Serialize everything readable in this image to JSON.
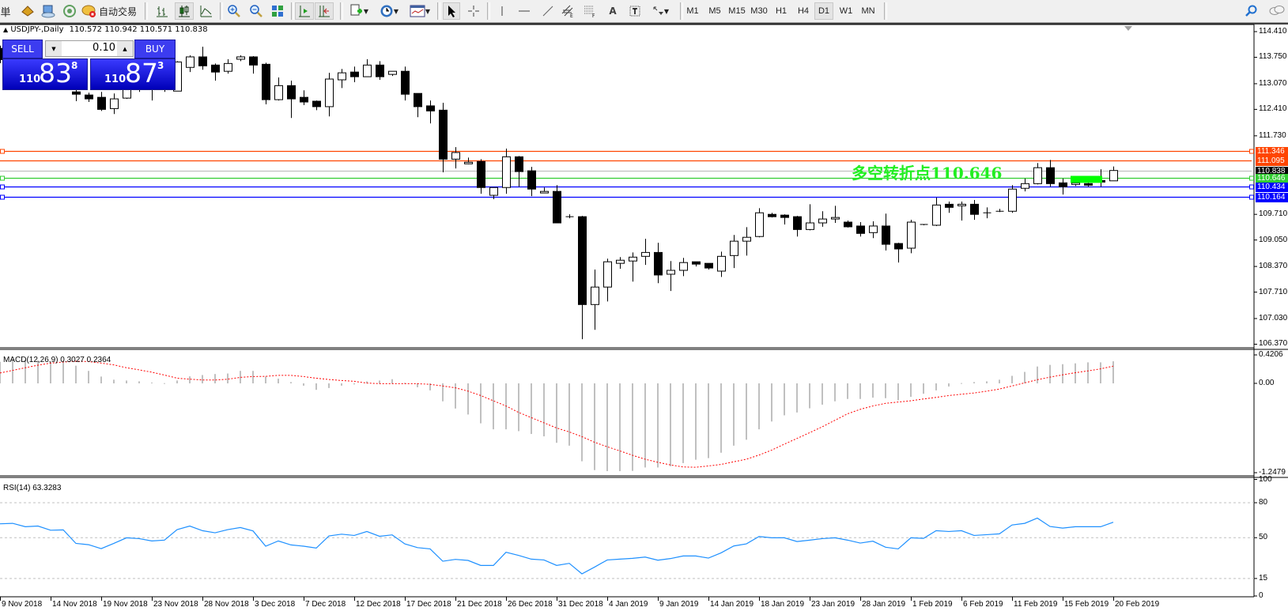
{
  "toolbar": {
    "items": [
      {
        "name": "menu-char",
        "label": "単"
      },
      {
        "name": "book-icon",
        "label": ""
      },
      {
        "name": "terminal-icon",
        "label": ""
      },
      {
        "name": "signal-icon",
        "label": ""
      },
      {
        "name": "autotrading-icon",
        "label": "自动交易"
      }
    ],
    "autotrading_label": "自动交易",
    "menu_char": "単",
    "timeframes": [
      "M1",
      "M5",
      "M15",
      "M30",
      "H1",
      "H4",
      "D1",
      "W1",
      "MN"
    ],
    "active_timeframe": "D1"
  },
  "chart": {
    "title": "USDJPY-,Daily",
    "ohlc": "110.572 110.942 110.571 110.838",
    "price_labels": [
      "114.410",
      "113.750",
      "113.070",
      "112.410",
      "111.730",
      "109.710",
      "109.050",
      "108.370",
      "107.710",
      "107.030",
      "106.370"
    ],
    "annotation": "多空转折点110.646",
    "levels": [
      {
        "value": "111.346",
        "color": "#ff4500",
        "anchor": true
      },
      {
        "value": "111.095",
        "color": "#ff4500",
        "anchor": false
      },
      {
        "value": "110.838",
        "color": "#000000",
        "line": "#c0c0c0",
        "anchor": false
      },
      {
        "value": "110.646",
        "color": "#32cd32",
        "anchor": true
      },
      {
        "value": "110.434",
        "color": "#0000ff",
        "anchor": true
      },
      {
        "value": "110.164",
        "color": "#0000ff",
        "anchor": true
      }
    ],
    "rectangle": {
      "from_price": 110.7,
      "to_price": 110.52,
      "color": "#00ff00"
    }
  },
  "trade_panel": {
    "sell_label": "SELL",
    "buy_label": "BUY",
    "lot": "0.10",
    "sell_price": {
      "prefix": "110",
      "big": "83",
      "sup": "8"
    },
    "buy_price": {
      "prefix": "110",
      "big": "87",
      "sup": "3"
    }
  },
  "macd": {
    "label": "MACD(12,26,9) 0.3027 0.2364",
    "axis_labels": [
      "0.4206",
      "0.00",
      "-1.2479"
    ]
  },
  "rsi": {
    "label": "RSI(14) 63.3283",
    "axis_labels": [
      "100",
      "80",
      "50",
      "15",
      "0"
    ],
    "levels": [
      80,
      50,
      15
    ]
  },
  "time_labels": [
    "9 Nov 2018",
    "14 Nov 2018",
    "19 Nov 2018",
    "23 Nov 2018",
    "28 Nov 2018",
    "3 Dec 2018",
    "7 Dec 2018",
    "12 Dec 2018",
    "17 Dec 2018",
    "21 Dec 2018",
    "26 Dec 2018",
    "31 Dec 2018",
    "4 Jan 2019",
    "9 Jan 2019",
    "14 Jan 2019",
    "18 Jan 2019",
    "23 Jan 2019",
    "28 Jan 2019",
    "1 Feb 2019",
    "6 Feb 2019",
    "11 Feb 2019",
    "15 Feb 2019",
    "20 Feb 2019"
  ],
  "chart_data": [
    {
      "type": "candlestick",
      "title": "USDJPY-,Daily",
      "ylim": [
        106.37,
        114.41
      ],
      "columns": [
        "open",
        "high",
        "low",
        "close"
      ],
      "candles": [
        [
          113.98,
          114.05,
          113.6,
          113.69
        ],
        null,
        null,
        null,
        null,
        null,
        [
          112.86,
          112.95,
          112.62,
          112.8
        ],
        [
          112.78,
          112.84,
          112.6,
          112.68
        ],
        [
          112.72,
          112.86,
          112.37,
          112.41
        ],
        [
          112.43,
          112.82,
          112.29,
          112.68
        ],
        [
          112.7,
          113.05,
          112.68,
          113.0
        ],
        [
          113.05,
          113.1,
          112.86,
          113.0
        ],
        [
          113.0,
          113.2,
          112.64,
          113.1
        ],
        [
          113.1,
          113.3,
          112.86,
          113.15
        ],
        [
          112.88,
          113.65,
          112.88,
          113.63
        ],
        [
          113.49,
          113.8,
          113.37,
          113.76
        ],
        [
          113.76,
          114.02,
          113.43,
          113.53
        ],
        [
          113.55,
          113.59,
          113.15,
          113.37
        ],
        [
          113.39,
          113.7,
          113.33,
          113.59
        ],
        [
          113.7,
          113.8,
          113.65,
          113.76
        ],
        [
          113.76,
          113.78,
          113.33,
          113.55
        ],
        [
          113.57,
          113.61,
          112.54,
          112.66
        ],
        [
          112.66,
          113.23,
          112.64,
          113.02
        ],
        [
          113.02,
          113.15,
          112.19,
          112.68
        ],
        [
          112.72,
          112.9,
          112.52,
          112.6
        ],
        [
          112.62,
          112.64,
          112.39,
          112.48
        ],
        [
          112.48,
          113.35,
          112.23,
          113.19
        ],
        [
          113.17,
          113.45,
          112.96,
          113.35
        ],
        [
          113.37,
          113.51,
          113.11,
          113.25
        ],
        [
          113.25,
          113.7,
          113.25,
          113.55
        ],
        [
          113.55,
          113.65,
          113.17,
          113.25
        ],
        [
          113.31,
          113.39,
          113.27,
          113.39
        ],
        [
          113.39,
          113.51,
          112.64,
          112.8
        ],
        [
          112.82,
          112.82,
          112.21,
          112.48
        ],
        [
          112.5,
          112.64,
          112.05,
          112.37
        ],
        [
          112.39,
          112.58,
          110.79,
          111.13
        ],
        [
          111.13,
          111.44,
          110.89,
          111.3
        ],
        [
          111.01,
          111.17,
          111.0,
          111.05
        ],
        [
          111.07,
          111.13,
          110.24,
          110.4
        ],
        [
          110.2,
          110.4,
          110.1,
          110.4
        ],
        [
          110.4,
          111.4,
          110.24,
          111.19
        ],
        [
          111.19,
          111.21,
          110.42,
          110.81
        ],
        [
          110.83,
          110.93,
          110.18,
          110.36
        ],
        [
          110.26,
          110.4,
          110.26,
          110.3
        ],
        [
          110.3,
          110.46,
          109.49,
          109.49
        ],
        [
          109.65,
          109.71,
          109.61,
          109.65
        ],
        [
          109.65,
          109.67,
          106.5,
          107.39
        ],
        [
          107.39,
          108.29,
          106.74,
          107.84
        ],
        [
          107.84,
          108.57,
          107.47,
          108.49
        ],
        [
          108.45,
          108.61,
          108.31,
          108.53
        ],
        [
          108.51,
          108.73,
          107.98,
          108.61
        ],
        [
          108.63,
          109.08,
          108.41,
          108.73
        ],
        [
          108.73,
          108.98,
          107.94,
          108.15
        ],
        [
          108.17,
          108.51,
          107.74,
          108.27
        ],
        [
          108.27,
          108.59,
          108.12,
          108.47
        ],
        [
          108.49,
          108.49,
          108.37,
          108.43
        ],
        [
          108.45,
          108.45,
          108.29,
          108.33
        ],
        [
          108.25,
          108.75,
          108.1,
          108.63
        ],
        [
          108.65,
          109.18,
          108.33,
          109.02
        ],
        [
          109.02,
          109.38,
          108.65,
          109.12
        ],
        [
          109.14,
          109.87,
          109.12,
          109.75
        ],
        [
          109.71,
          109.75,
          109.63,
          109.65
        ],
        [
          109.69,
          109.71,
          109.45,
          109.63
        ],
        [
          109.65,
          109.67,
          109.14,
          109.32
        ],
        [
          109.32,
          109.97,
          109.3,
          109.49
        ],
        [
          109.49,
          109.79,
          109.39,
          109.59
        ],
        [
          109.59,
          109.93,
          109.49,
          109.63
        ],
        [
          109.51,
          109.55,
          109.37,
          109.39
        ],
        [
          109.41,
          109.51,
          109.14,
          109.22
        ],
        [
          109.24,
          109.53,
          109.1,
          109.41
        ],
        [
          109.41,
          109.73,
          108.78,
          108.94
        ],
        [
          108.96,
          108.98,
          108.47,
          108.82
        ],
        [
          108.84,
          109.57,
          108.71,
          109.51
        ],
        [
          109.45,
          109.45,
          109.43,
          109.43
        ],
        [
          109.43,
          110.14,
          109.41,
          109.95
        ],
        [
          109.97,
          110.04,
          109.75,
          109.89
        ],
        [
          109.93,
          110.04,
          109.55,
          109.97
        ],
        [
          109.97,
          110.08,
          109.57,
          109.71
        ],
        [
          109.75,
          109.89,
          109.61,
          109.75
        ],
        [
          109.79,
          109.85,
          109.77,
          109.79
        ],
        [
          109.79,
          110.46,
          109.75,
          110.36
        ],
        [
          110.38,
          110.63,
          110.3,
          110.5
        ],
        [
          110.5,
          111.03,
          110.48,
          110.91
        ],
        [
          110.91,
          111.11,
          110.42,
          110.5
        ],
        [
          110.52,
          110.63,
          110.22,
          110.42
        ],
        [
          110.48,
          110.6,
          110.44,
          110.52
        ],
        [
          110.5,
          110.52,
          110.42,
          110.46
        ],
        [
          110.58,
          110.87,
          110.42,
          110.54
        ],
        [
          110.572,
          110.942,
          110.571,
          110.838
        ]
      ]
    },
    {
      "type": "bar",
      "title": "MACD(12,26,9)",
      "ylim": [
        -1.2479,
        0.4206
      ],
      "series": [
        {
          "name": "MACD",
          "type": "bar",
          "color": "#c0c0c0",
          "values": [
            0.295,
            0.331,
            0.32,
            0.313,
            0.295,
            0.306,
            0.242,
            0.171,
            0.093,
            0.05,
            0.039,
            0.028,
            0.011,
            0.003,
            0.039,
            0.096,
            0.114,
            0.128,
            0.135,
            0.171,
            0.171,
            0.093,
            0.064,
            0.018,
            -0.032,
            -0.089,
            -0.064,
            -0.032,
            -0.014,
            0.028,
            0.039,
            0.057,
            0.007,
            -0.053,
            -0.096,
            -0.246,
            -0.345,
            -0.427,
            -0.548,
            -0.63,
            -0.63,
            -0.655,
            -0.694,
            -0.726,
            -0.815,
            -0.854,
            -1.068,
            -1.189,
            -1.203,
            -1.203,
            -1.2,
            -1.153,
            -1.153,
            -1.136,
            -1.093,
            -1.047,
            -1.025,
            -0.951,
            -0.854,
            -0.773,
            -0.63,
            -0.523,
            -0.438,
            -0.399,
            -0.342,
            -0.292,
            -0.246,
            -0.214,
            -0.214,
            -0.196,
            -0.203,
            -0.231,
            -0.185,
            -0.142,
            -0.096,
            -0.043,
            0.004,
            0.018,
            0.028,
            0.05,
            0.103,
            0.157,
            0.231,
            0.253,
            0.263,
            0.274,
            0.288,
            0.288,
            0.3027
          ]
        },
        {
          "name": "Signal",
          "type": "line",
          "color": "#ff0000",
          "values": [
            0.142,
            0.178,
            0.214,
            0.249,
            0.278,
            0.292,
            0.303,
            0.299,
            0.278,
            0.253,
            0.214,
            0.185,
            0.153,
            0.114,
            0.071,
            0.057,
            0.046,
            0.046,
            0.057,
            0.082,
            0.093,
            0.096,
            0.11,
            0.11,
            0.093,
            0.071,
            0.053,
            0.039,
            0.028,
            0.004,
            -0.004,
            -0.004,
            -0.004,
            -0.004,
            -0.014,
            -0.036,
            -0.061,
            -0.107,
            -0.167,
            -0.239,
            -0.31,
            -0.399,
            -0.47,
            -0.541,
            -0.612,
            -0.666,
            -0.73,
            -0.808,
            -0.869,
            -0.926,
            -0.986,
            -1.04,
            -1.082,
            -1.118,
            -1.146,
            -1.15,
            -1.132,
            -1.111,
            -1.075,
            -1.04,
            -0.983,
            -0.915,
            -0.833,
            -0.755,
            -0.676,
            -0.595,
            -0.506,
            -0.417,
            -0.356,
            -0.31,
            -0.274,
            -0.256,
            -0.239,
            -0.214,
            -0.192,
            -0.167,
            -0.149,
            -0.132,
            -0.107,
            -0.078,
            -0.036,
            0.007,
            0.05,
            0.085,
            0.117,
            0.146,
            0.171,
            0.199,
            0.2364
          ]
        }
      ]
    },
    {
      "type": "line",
      "title": "RSI(14)",
      "ylim": [
        0,
        100
      ],
      "series": [
        {
          "name": "RSI",
          "color": "#1e90ff",
          "values": [
            61.9,
            62.3,
            59.4,
            60.0,
            56.4,
            56.7,
            45.1,
            44.0,
            40.6,
            45.1,
            49.9,
            49.2,
            47.2,
            47.9,
            56.9,
            60.0,
            56.0,
            54.2,
            56.9,
            58.7,
            55.8,
            42.7,
            47.2,
            43.8,
            42.7,
            41.1,
            51.5,
            53.0,
            51.9,
            55.3,
            51.2,
            52.4,
            44.7,
            41.5,
            40.4,
            29.8,
            31.4,
            30.5,
            26.2,
            26.2,
            37.5,
            34.8,
            31.6,
            30.9,
            26.2,
            28.0,
            19.0,
            24.8,
            30.9,
            31.6,
            32.3,
            33.4,
            30.7,
            32.1,
            34.3,
            34.3,
            32.5,
            37.0,
            42.9,
            44.7,
            51.0,
            49.9,
            49.9,
            46.7,
            47.9,
            49.2,
            49.9,
            47.9,
            45.4,
            47.0,
            41.8,
            40.4,
            49.9,
            49.4,
            56.0,
            55.3,
            56.0,
            51.9,
            52.6,
            53.3,
            60.9,
            62.3,
            66.8,
            59.6,
            58.2,
            59.4,
            59.4,
            59.4,
            63.3
          ]
        }
      ]
    }
  ]
}
